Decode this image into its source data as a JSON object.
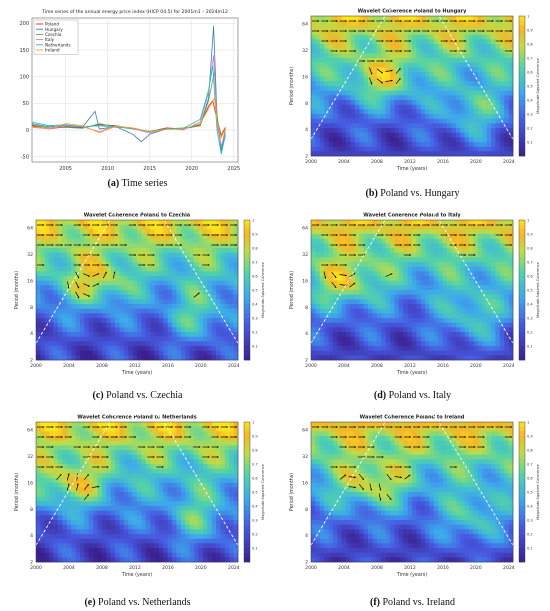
{
  "captions": {
    "a": {
      "label": "(a)",
      "text": "Time series"
    },
    "b": {
      "label": "(b)",
      "text": "Poland vs. Hungary"
    },
    "c": {
      "label": "(c)",
      "text": "Poland vs. Czechia"
    },
    "d": {
      "label": "(d)",
      "text": "Poland vs. Italy"
    },
    "e": {
      "label": "(e)",
      "text": "Poland vs. Netherlands"
    },
    "f": {
      "label": "(f)",
      "text": "Poland vs. Ireland"
    }
  },
  "colors": {
    "Poland": "#e41a1c",
    "Hungary": "#377eb8",
    "Czechia": "#4daf4a",
    "Italy": "#e377c2",
    "Netherlands": "#17becf",
    "Ireland": "#ff9f1c",
    "coh_low": "#3b1f8f",
    "coh_high": "#f7e11f"
  },
  "chart_data": [
    {
      "type": "line",
      "title": "Time series of the annual energy price index (HICP 04.5) for 2001m1 – 2024m12",
      "x_ticks": [
        2005,
        2010,
        2015,
        2020,
        2025
      ],
      "y_ticks": [
        -50,
        0,
        50,
        100,
        150,
        200
      ],
      "xlim": [
        2001,
        2025.5
      ],
      "ylim": [
        -60,
        210
      ],
      "grid": true,
      "legend": "top-left",
      "series": [
        {
          "name": "Poland",
          "x": [
            2001,
            2003,
            2005,
            2007,
            2009,
            2011,
            2013,
            2015,
            2017,
            2019,
            2021,
            2022,
            2022.5,
            2023,
            2023.5,
            2024
          ],
          "y": [
            8,
            2,
            6,
            4,
            10,
            8,
            2,
            -3,
            4,
            2,
            10,
            45,
            55,
            20,
            -10,
            5
          ]
        },
        {
          "name": "Hungary",
          "x": [
            2001,
            2003,
            2005,
            2007,
            2008.5,
            2009,
            2011,
            2013,
            2014,
            2015,
            2017,
            2019,
            2021,
            2022,
            2022.6,
            2023,
            2023.5,
            2024
          ],
          "y": [
            12,
            6,
            8,
            5,
            35,
            2,
            6,
            -8,
            -22,
            -8,
            2,
            2,
            8,
            60,
            195,
            25,
            -40,
            -5
          ]
        },
        {
          "name": "Czechia",
          "x": [
            2001,
            2003,
            2005,
            2007,
            2009,
            2011,
            2013,
            2015,
            2017,
            2019,
            2021,
            2022,
            2022.7,
            2023,
            2023.5,
            2024
          ],
          "y": [
            10,
            4,
            5,
            3,
            12,
            6,
            2,
            -2,
            2,
            4,
            8,
            55,
            110,
            30,
            -35,
            2
          ]
        },
        {
          "name": "Italy",
          "x": [
            2001,
            2003,
            2005,
            2007,
            2009,
            2011,
            2013,
            2015,
            2017,
            2019,
            2021,
            2022,
            2022.6,
            2023,
            2023.5,
            2024
          ],
          "y": [
            5,
            2,
            8,
            6,
            -3,
            8,
            3,
            -6,
            3,
            0,
            15,
            70,
            140,
            10,
            -30,
            -5
          ]
        },
        {
          "name": "Netherlands",
          "x": [
            2001,
            2003,
            2005,
            2007,
            2009,
            2011,
            2013,
            2015,
            2017,
            2019,
            2021,
            2022,
            2022.5,
            2023,
            2023.5,
            2024
          ],
          "y": [
            15,
            8,
            10,
            6,
            8,
            5,
            4,
            -4,
            2,
            3,
            20,
            75,
            120,
            0,
            -45,
            -10
          ]
        },
        {
          "name": "Ireland",
          "x": [
            2001,
            2003,
            2005,
            2007,
            2009,
            2011,
            2013,
            2015,
            2017,
            2019,
            2021,
            2022,
            2022.7,
            2023,
            2023.5,
            2024
          ],
          "y": [
            6,
            3,
            12,
            8,
            -5,
            7,
            4,
            -3,
            1,
            2,
            12,
            40,
            60,
            15,
            -15,
            3
          ]
        }
      ]
    },
    {
      "type": "heatmap",
      "title": "Wavelet Coherence Poland to Hungary",
      "xlabel": "Time (years)",
      "ylabel": "Period (months)",
      "colorbar_label": "Magnitude-Squared Coherence",
      "x_ticks": [
        2000,
        2004,
        2008,
        2012,
        2016,
        2020,
        2024
      ],
      "y_ticks": [
        "2",
        "4",
        "8",
        "16",
        "32",
        "64"
      ],
      "colorbar_ticks": [
        0.1,
        0.2,
        0.3,
        0.4,
        0.5,
        0.6,
        0.7,
        0.8,
        0.9,
        1
      ],
      "xlim": [
        2000,
        2024.5
      ],
      "ylim_log2": [
        1,
        6.3
      ]
    },
    {
      "type": "heatmap",
      "title": "Wavelet Coherence Poland to Czechia",
      "xlabel": "Time (years)",
      "ylabel": "Period (months)",
      "colorbar_label": "Magnitude-Squared Coherence",
      "x_ticks": [
        2000,
        2004,
        2008,
        2012,
        2016,
        2020,
        2024
      ],
      "y_ticks": [
        "2",
        "4",
        "8",
        "16",
        "32",
        "64"
      ],
      "colorbar_ticks": [
        0.1,
        0.2,
        0.3,
        0.4,
        0.5,
        0.6,
        0.7,
        0.8,
        0.9,
        1
      ],
      "xlim": [
        2000,
        2024.5
      ],
      "ylim_log2": [
        1,
        6.3
      ]
    },
    {
      "type": "heatmap",
      "title": "Wavelet Coherence Poland to Italy",
      "xlabel": "Time (years)",
      "ylabel": "Period (months)",
      "colorbar_label": "Magnitude-Squared Coherence",
      "x_ticks": [
        2000,
        2004,
        2008,
        2012,
        2016,
        2020,
        2024
      ],
      "y_ticks": [
        "2",
        "4",
        "8",
        "16",
        "32",
        "64"
      ],
      "colorbar_ticks": [
        0.1,
        0.2,
        0.3,
        0.4,
        0.5,
        0.6,
        0.7,
        0.8,
        0.9,
        1
      ],
      "xlim": [
        2000,
        2024.5
      ],
      "ylim_log2": [
        1,
        6.3
      ]
    },
    {
      "type": "heatmap",
      "title": "Wavelet Coherence Poland to Netherlands",
      "xlabel": "Time (years)",
      "ylabel": "Period (months)",
      "colorbar_label": "Magnitude-Squared Coherence",
      "x_ticks": [
        2000,
        2004,
        2008,
        2012,
        2016,
        2020,
        2024
      ],
      "y_ticks": [
        "2",
        "4",
        "8",
        "16",
        "32",
        "64"
      ],
      "colorbar_ticks": [
        0.1,
        0.2,
        0.3,
        0.4,
        0.5,
        0.6,
        0.7,
        0.8,
        0.9,
        1
      ],
      "xlim": [
        2000,
        2024.5
      ],
      "ylim_log2": [
        1,
        6.3
      ]
    },
    {
      "type": "heatmap",
      "title": "Wavelet Coherence Poland to Ireland",
      "xlabel": "Time (years)",
      "ylabel": "Period (months)",
      "colorbar_label": "Magnitude-Squared Coherence",
      "x_ticks": [
        2000,
        2004,
        2008,
        2012,
        2016,
        2020,
        2024
      ],
      "y_ticks": [
        "2",
        "4",
        "8",
        "16",
        "32",
        "64"
      ],
      "colorbar_ticks": [
        0.1,
        0.2,
        0.3,
        0.4,
        0.5,
        0.6,
        0.7,
        0.8,
        0.9,
        1
      ],
      "xlim": [
        2000,
        2024.5
      ],
      "ylim_log2": [
        1,
        6.3
      ]
    }
  ]
}
